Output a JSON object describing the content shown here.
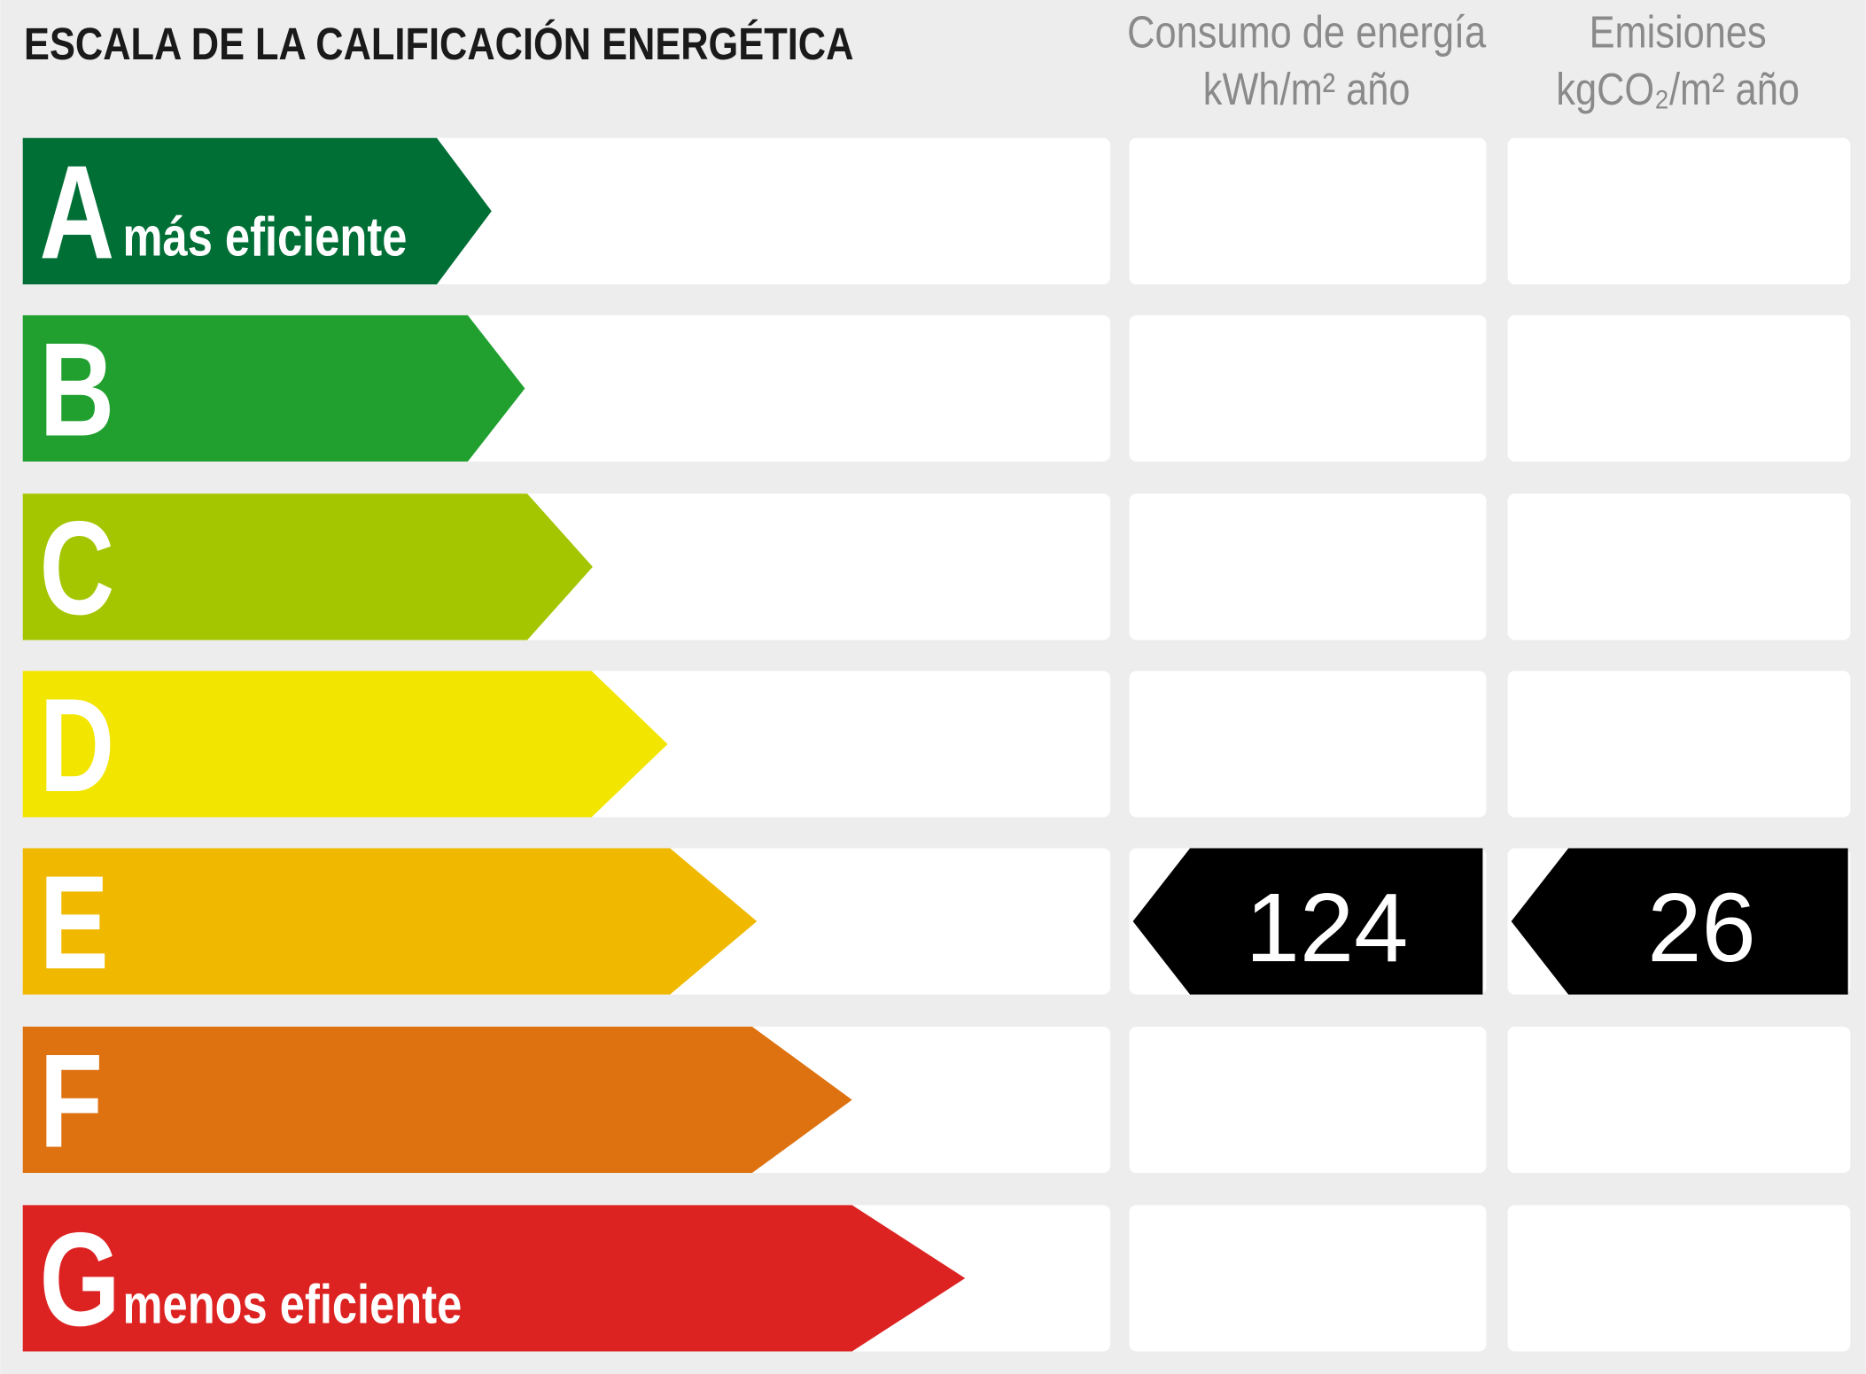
{
  "header": {
    "title": "ESCALA DE LA CALIFICACIÓN ENERGÉTICA",
    "columns": [
      {
        "title": "Consumo de energía",
        "unit": "kWh/m² año"
      },
      {
        "title": "Emisiones",
        "unit": "kgCO₂/m² año"
      }
    ]
  },
  "rows": [
    {
      "letter": "A",
      "label": "más eficiente",
      "color": "#006f35"
    },
    {
      "letter": "B",
      "color": "#21a030"
    },
    {
      "letter": "C",
      "color": "#a4c600"
    },
    {
      "letter": "D",
      "color": "#f2e500"
    },
    {
      "letter": "E",
      "color": "#f0b900",
      "consumption": 124,
      "emissions": 26
    },
    {
      "letter": "F",
      "color": "#de7210"
    },
    {
      "letter": "G",
      "label": "menos eficiente",
      "color": "#dd2222"
    }
  ]
}
